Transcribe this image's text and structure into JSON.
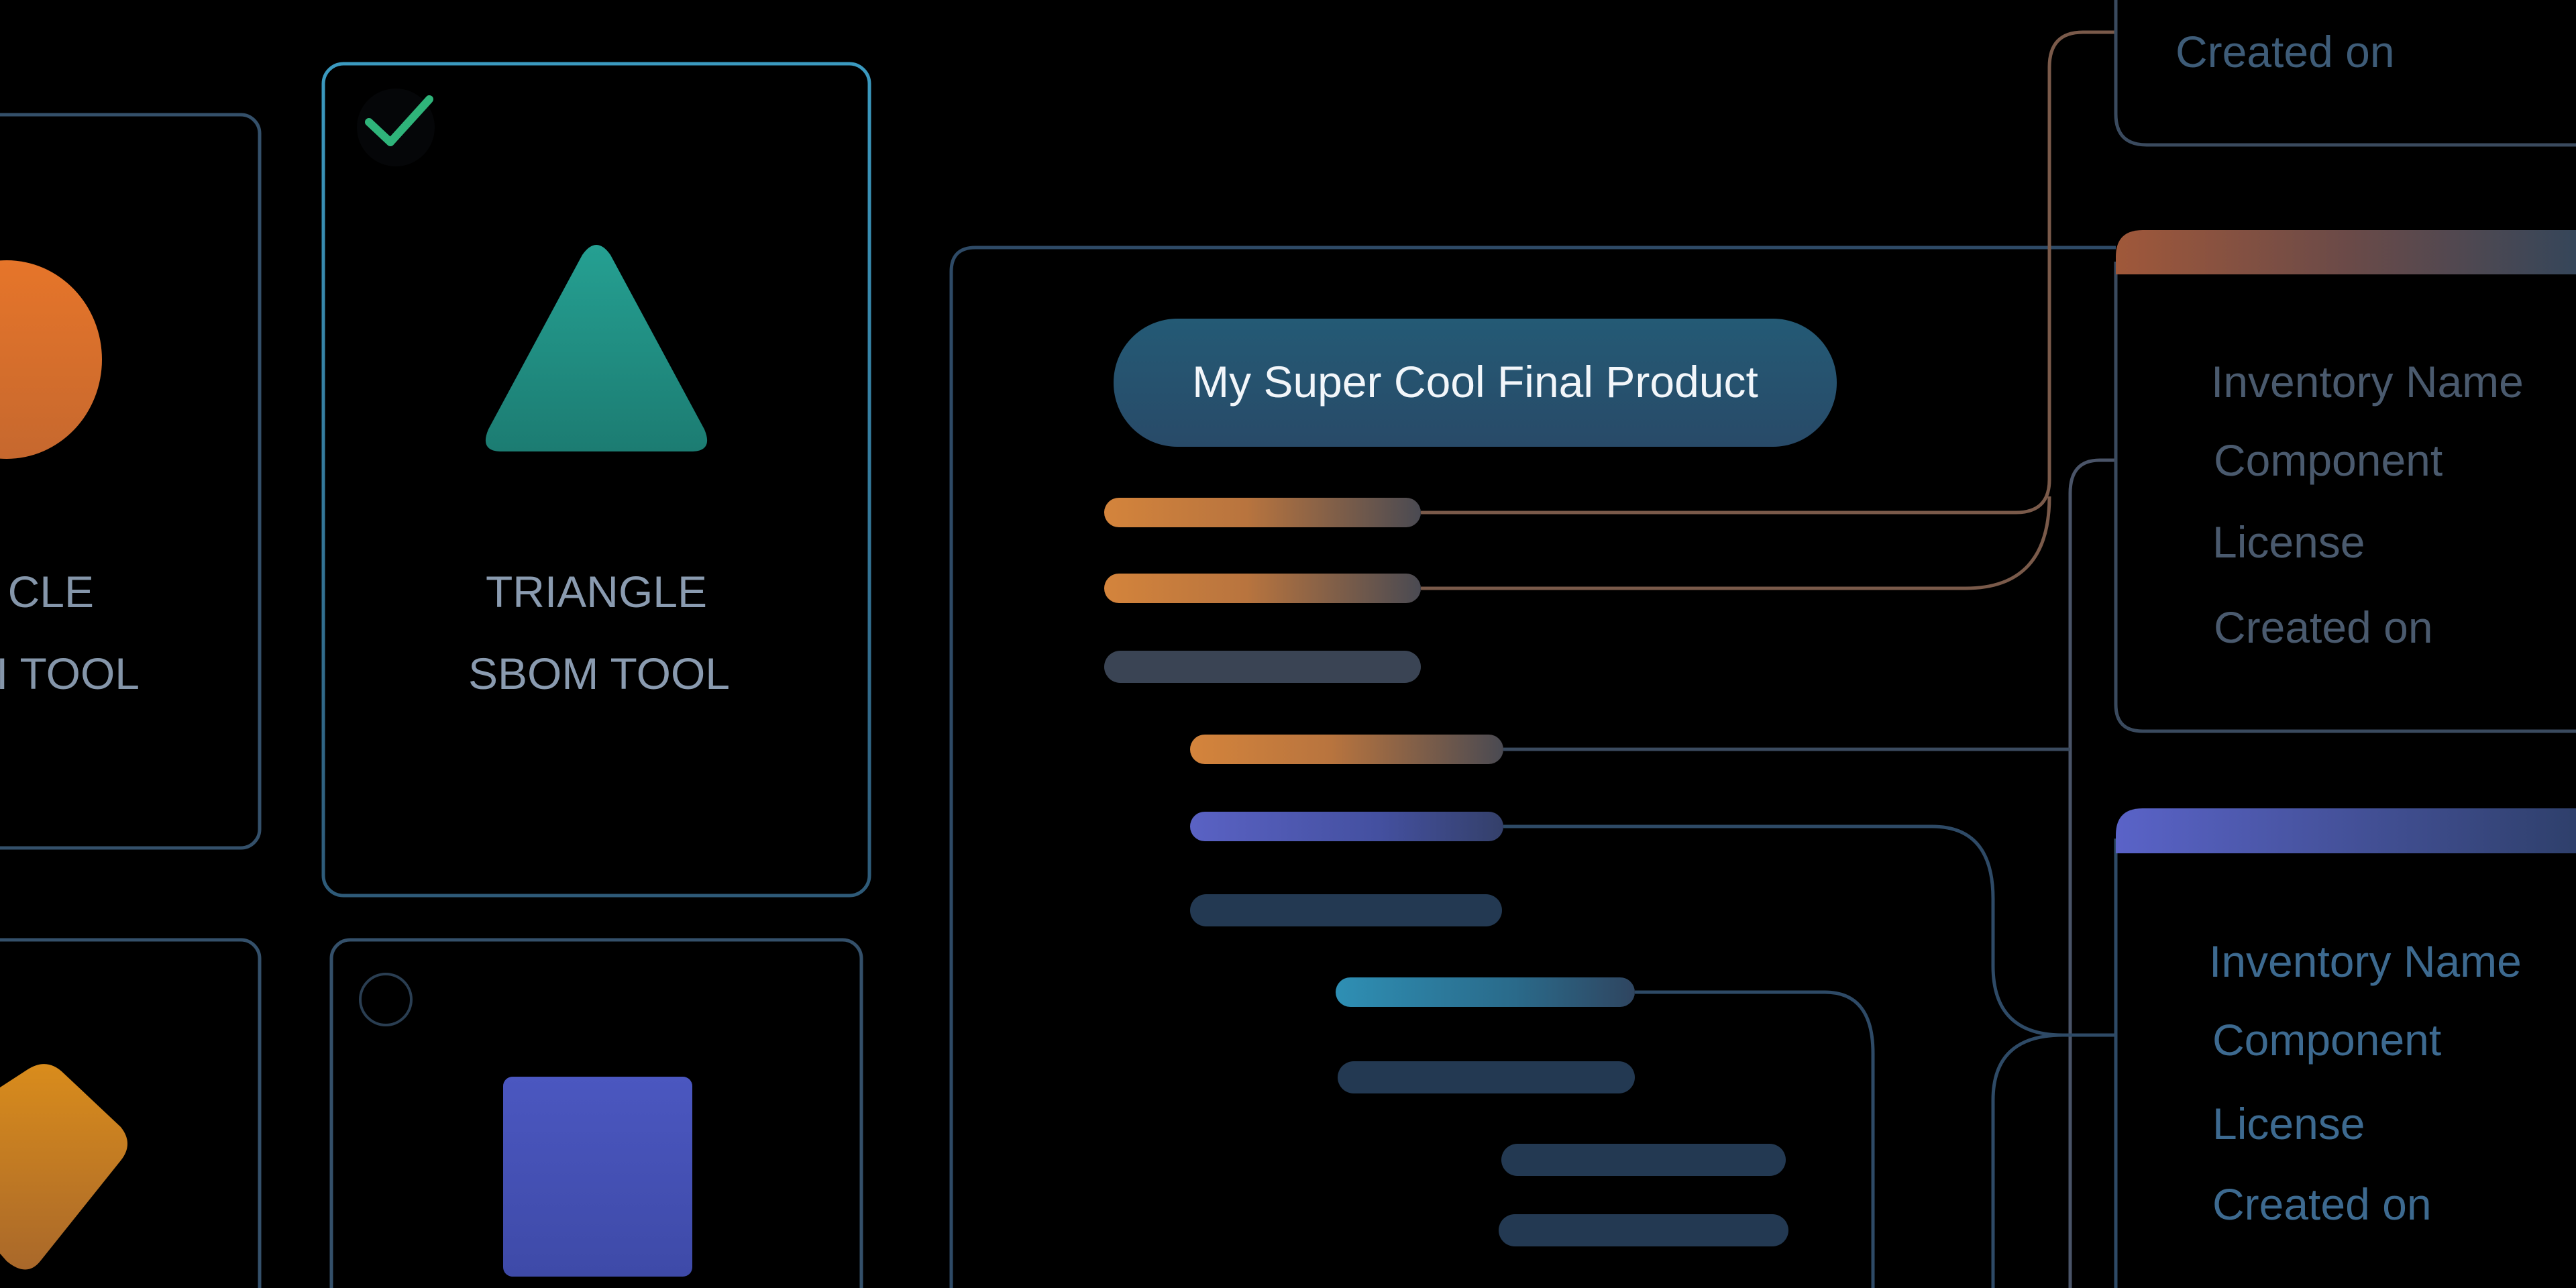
{
  "tool_cards": [
    {
      "label_line1": "CLE",
      "label_line2": "I TOOL",
      "shape": "circle",
      "color": "#e0702c"
    },
    {
      "label_line1": "TRIANGLE",
      "label_line2": "SBOM TOOL",
      "shape": "triangle",
      "color": "#22968a",
      "selected": true
    },
    {
      "shape": "diamond",
      "color": "#d08a1e"
    },
    {
      "shape": "square",
      "color": "#4a55bb",
      "selected": false
    }
  ],
  "product": {
    "title": "My Super Cool Final Product"
  },
  "inventory_cards": [
    {
      "fields": [
        "Created on"
      ]
    },
    {
      "fields": [
        "Inventory Name",
        "Component",
        "License",
        "Created on"
      ],
      "accent": "#a0583a"
    },
    {
      "fields": [
        "Inventory Name",
        "Component",
        "License",
        "Created on"
      ],
      "accent": "#5a63c8"
    }
  ],
  "colors": {
    "background": "#000000",
    "card_border": "#34506a",
    "selected_border": "#3d8db0",
    "check": "#2fb47a",
    "connector_brown": "#7a5a4a",
    "connector_blue": "#2e4a66"
  }
}
